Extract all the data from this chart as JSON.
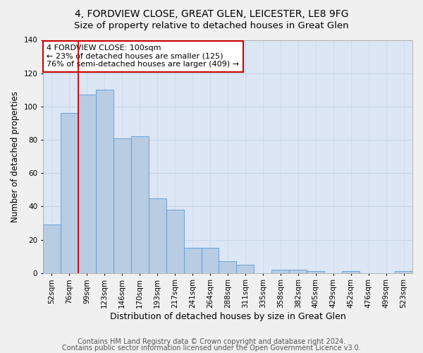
{
  "title1": "4, FORDVIEW CLOSE, GREAT GLEN, LEICESTER, LE8 9FG",
  "title2": "Size of property relative to detached houses in Great Glen",
  "xlabel": "Distribution of detached houses by size in Great Glen",
  "ylabel": "Number of detached properties",
  "categories": [
    "52sqm",
    "76sqm",
    "99sqm",
    "123sqm",
    "146sqm",
    "170sqm",
    "193sqm",
    "217sqm",
    "241sqm",
    "264sqm",
    "288sqm",
    "311sqm",
    "335sqm",
    "358sqm",
    "382sqm",
    "405sqm",
    "429sqm",
    "452sqm",
    "476sqm",
    "499sqm",
    "523sqm"
  ],
  "values": [
    29,
    96,
    107,
    110,
    81,
    82,
    45,
    38,
    15,
    15,
    7,
    5,
    0,
    2,
    2,
    1,
    0,
    1,
    0,
    0,
    1
  ],
  "bar_color": "#b8cce4",
  "bar_edge_color": "#5b9bd5",
  "annotation_text_line1": "4 FORDVIEW CLOSE: 100sqm",
  "annotation_text_line2": "← 23% of detached houses are smaller (125)",
  "annotation_text_line3": "76% of semi-detached houses are larger (409) →",
  "annotation_box_color": "#ffffff",
  "annotation_box_edge": "#cc0000",
  "vline_color": "#cc0000",
  "vline_x": 1.5,
  "ylim": [
    0,
    140
  ],
  "yticks": [
    0,
    20,
    40,
    60,
    80,
    100,
    120,
    140
  ],
  "grid_color": "#c8d4e8",
  "background_color": "#dce6f5",
  "fig_background": "#f0f0f0",
  "footer1": "Contains HM Land Registry data © Crown copyright and database right 2024.",
  "footer2": "Contains public sector information licensed under the Open Government Licence v3.0.",
  "title1_fontsize": 10,
  "title2_fontsize": 9.5,
  "xlabel_fontsize": 9,
  "ylabel_fontsize": 8.5,
  "tick_fontsize": 7.5,
  "annotation_fontsize": 8,
  "footer_fontsize": 7
}
